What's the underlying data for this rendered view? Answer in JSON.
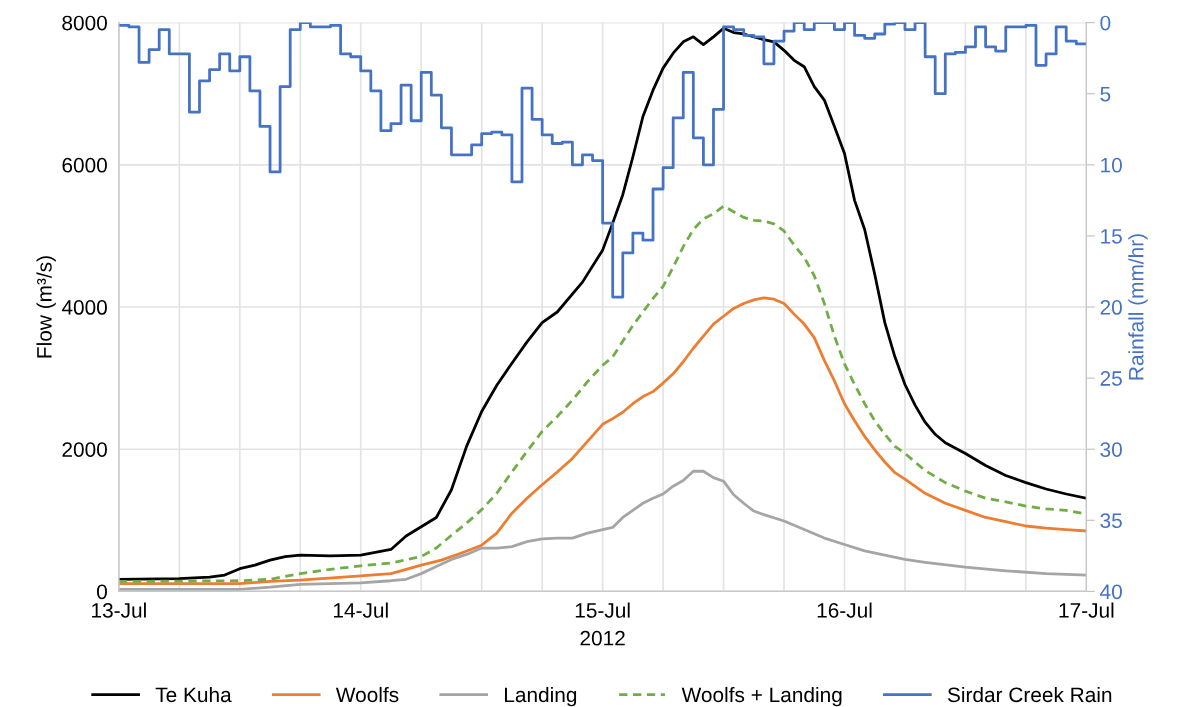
{
  "chart_data": {
    "type": "line",
    "xlabel": "2012",
    "ylabel": "Flow (m³/s)",
    "y2label": "Rainfall (mm/hr)",
    "xlim": [
      "2012-07-13T00:00",
      "2012-07-17T00:00"
    ],
    "xticks": [
      {
        "value": "2012-07-13T00:00",
        "label": "13-Jul"
      },
      {
        "value": "2012-07-13T06:00",
        "label": null
      },
      {
        "value": "2012-07-13T12:00",
        "label": null
      },
      {
        "value": "2012-07-13T18:00",
        "label": null
      },
      {
        "value": "2012-07-14T00:00",
        "label": "14-Jul"
      },
      {
        "value": "2012-07-14T06:00",
        "label": null
      },
      {
        "value": "2012-07-14T12:00",
        "label": null
      },
      {
        "value": "2012-07-14T18:00",
        "label": null
      },
      {
        "value": "2012-07-15T00:00",
        "label": "15-Jul"
      },
      {
        "value": "2012-07-15T06:00",
        "label": null
      },
      {
        "value": "2012-07-15T12:00",
        "label": null
      },
      {
        "value": "2012-07-15T18:00",
        "label": null
      },
      {
        "value": "2012-07-16T00:00",
        "label": "16-Jul"
      },
      {
        "value": "2012-07-16T06:00",
        "label": null
      },
      {
        "value": "2012-07-16T12:00",
        "label": null
      },
      {
        "value": "2012-07-16T18:00",
        "label": null
      },
      {
        "value": "2012-07-17T00:00",
        "label": "17-Jul"
      }
    ],
    "ylim": [
      0,
      8000
    ],
    "yticks": [
      0,
      2000,
      4000,
      6000,
      8000
    ],
    "y2lim": [
      40,
      0
    ],
    "y2ticks": [
      0,
      5,
      10,
      15,
      20,
      25,
      30,
      35,
      40
    ],
    "grid": true,
    "legend": "bottom",
    "series": [
      {
        "name": "Te Kuha",
        "color": "#000000",
        "x": [
          "2012-07-13T00:00",
          "2012-07-13T06:00",
          "2012-07-13T09:00",
          "2012-07-13T10:30",
          "2012-07-13T12:00",
          "2012-07-13T13:30",
          "2012-07-13T15:00",
          "2012-07-13T16:30",
          "2012-07-13T18:00",
          "2012-07-13T21:00",
          "2012-07-14T00:00",
          "2012-07-14T03:00",
          "2012-07-14T04:30",
          "2012-07-14T06:00",
          "2012-07-14T07:30",
          "2012-07-14T09:00",
          "2012-07-14T10:30",
          "2012-07-14T12:00",
          "2012-07-14T13:30",
          "2012-07-14T15:00",
          "2012-07-14T16:30",
          "2012-07-14T18:00",
          "2012-07-14T19:30",
          "2012-07-14T22:00",
          "2012-07-15T00:00",
          "2012-07-15T01:00",
          "2012-07-15T02:00",
          "2012-07-15T03:00",
          "2012-07-15T04:00",
          "2012-07-15T05:00",
          "2012-07-15T06:00",
          "2012-07-15T07:00",
          "2012-07-15T08:00",
          "2012-07-15T09:00",
          "2012-07-15T10:00",
          "2012-07-15T11:00",
          "2012-07-15T12:00",
          "2012-07-15T13:00",
          "2012-07-15T14:00",
          "2012-07-15T16:00",
          "2012-07-15T17:00",
          "2012-07-15T18:00",
          "2012-07-15T19:00",
          "2012-07-15T20:00",
          "2012-07-15T21:00",
          "2012-07-15T22:00",
          "2012-07-15T23:00",
          "2012-07-16T00:00",
          "2012-07-16T01:00",
          "2012-07-16T02:00",
          "2012-07-16T03:00",
          "2012-07-16T04:00",
          "2012-07-16T05:00",
          "2012-07-16T06:00",
          "2012-07-16T07:00",
          "2012-07-16T08:00",
          "2012-07-16T09:00",
          "2012-07-16T10:00",
          "2012-07-16T12:00",
          "2012-07-16T14:00",
          "2012-07-16T16:00",
          "2012-07-16T18:00",
          "2012-07-16T20:00",
          "2012-07-16T22:00",
          "2012-07-17T00:00"
        ],
        "values": [
          170,
          180,
          200,
          230,
          320,
          370,
          440,
          490,
          510,
          500,
          510,
          590,
          780,
          910,
          1040,
          1430,
          2040,
          2530,
          2900,
          3210,
          3510,
          3780,
          3930,
          4350,
          4800,
          5180,
          5580,
          6110,
          6680,
          7050,
          7360,
          7570,
          7730,
          7800,
          7690,
          7800,
          7920,
          7860,
          7840,
          7760,
          7730,
          7610,
          7470,
          7380,
          7100,
          6910,
          6540,
          6160,
          5500,
          5090,
          4460,
          3780,
          3300,
          2910,
          2620,
          2380,
          2210,
          2090,
          1940,
          1770,
          1630,
          1530,
          1440,
          1370,
          1310
        ]
      },
      {
        "name": "Woolfs",
        "color": "#ed7d31",
        "x": [
          "2012-07-13T00:00",
          "2012-07-13T12:00",
          "2012-07-13T15:00",
          "2012-07-13T18:00",
          "2012-07-14T00:00",
          "2012-07-14T03:00",
          "2012-07-14T06:00",
          "2012-07-14T08:00",
          "2012-07-14T10:00",
          "2012-07-14T12:00",
          "2012-07-14T13:30",
          "2012-07-14T15:00",
          "2012-07-14T16:30",
          "2012-07-14T18:00",
          "2012-07-14T19:30",
          "2012-07-14T21:00",
          "2012-07-14T22:30",
          "2012-07-15T00:00",
          "2012-07-15T01:00",
          "2012-07-15T02:00",
          "2012-07-15T03:00",
          "2012-07-15T04:00",
          "2012-07-15T05:00",
          "2012-07-15T06:00",
          "2012-07-15T07:00",
          "2012-07-15T08:00",
          "2012-07-15T09:00",
          "2012-07-15T10:00",
          "2012-07-15T11:00",
          "2012-07-15T12:00",
          "2012-07-15T13:00",
          "2012-07-15T14:00",
          "2012-07-15T15:00",
          "2012-07-15T16:00",
          "2012-07-15T17:00",
          "2012-07-15T18:00",
          "2012-07-15T19:00",
          "2012-07-15T20:00",
          "2012-07-15T21:00",
          "2012-07-15T22:00",
          "2012-07-15T23:00",
          "2012-07-16T00:00",
          "2012-07-16T01:00",
          "2012-07-16T02:00",
          "2012-07-16T03:00",
          "2012-07-16T04:00",
          "2012-07-16T05:00",
          "2012-07-16T06:00",
          "2012-07-16T08:00",
          "2012-07-16T10:00",
          "2012-07-16T12:00",
          "2012-07-16T14:00",
          "2012-07-16T16:00",
          "2012-07-16T18:00",
          "2012-07-16T20:00",
          "2012-07-16T22:00",
          "2012-07-17T00:00"
        ],
        "values": [
          110,
          110,
          140,
          160,
          220,
          250,
          370,
          440,
          540,
          650,
          820,
          1100,
          1310,
          1500,
          1680,
          1870,
          2110,
          2350,
          2430,
          2520,
          2640,
          2740,
          2810,
          2930,
          3060,
          3230,
          3420,
          3590,
          3760,
          3870,
          3980,
          4050,
          4100,
          4130,
          4110,
          4050,
          3900,
          3760,
          3570,
          3250,
          2960,
          2640,
          2400,
          2180,
          1990,
          1820,
          1670,
          1580,
          1380,
          1240,
          1140,
          1040,
          980,
          920,
          890,
          870,
          850
        ]
      },
      {
        "name": "Landing",
        "color": "#a5a5a5",
        "x": [
          "2012-07-13T00:00",
          "2012-07-13T12:00",
          "2012-07-13T15:00",
          "2012-07-13T18:00",
          "2012-07-13T21:00",
          "2012-07-14T00:00",
          "2012-07-14T03:00",
          "2012-07-14T04:30",
          "2012-07-14T06:00",
          "2012-07-14T07:30",
          "2012-07-14T09:00",
          "2012-07-14T10:30",
          "2012-07-14T12:00",
          "2012-07-14T13:30",
          "2012-07-14T15:00",
          "2012-07-14T16:30",
          "2012-07-14T18:00",
          "2012-07-14T19:30",
          "2012-07-14T21:00",
          "2012-07-14T22:30",
          "2012-07-15T00:00",
          "2012-07-15T01:00",
          "2012-07-15T02:00",
          "2012-07-15T03:00",
          "2012-07-15T04:00",
          "2012-07-15T05:00",
          "2012-07-15T06:00",
          "2012-07-15T07:00",
          "2012-07-15T08:00",
          "2012-07-15T09:00",
          "2012-07-15T10:00",
          "2012-07-15T11:00",
          "2012-07-15T12:00",
          "2012-07-15T13:00",
          "2012-07-15T14:00",
          "2012-07-15T15:00",
          "2012-07-15T16:00",
          "2012-07-15T18:00",
          "2012-07-15T20:00",
          "2012-07-15T22:00",
          "2012-07-16T00:00",
          "2012-07-16T02:00",
          "2012-07-16T04:00",
          "2012-07-16T06:00",
          "2012-07-16T08:00",
          "2012-07-16T12:00",
          "2012-07-16T16:00",
          "2012-07-16T20:00",
          "2012-07-17T00:00"
        ],
        "values": [
          30,
          30,
          60,
          100,
          110,
          120,
          150,
          170,
          250,
          350,
          450,
          520,
          610,
          610,
          630,
          700,
          740,
          750,
          750,
          820,
          870,
          900,
          1040,
          1140,
          1240,
          1310,
          1370,
          1480,
          1560,
          1690,
          1690,
          1600,
          1550,
          1360,
          1240,
          1130,
          1080,
          990,
          870,
          750,
          660,
          570,
          510,
          450,
          410,
          340,
          290,
          250,
          230
        ]
      },
      {
        "name": "Woolfs + Landing",
        "color": "#70ad47",
        "line_style": "dashed",
        "x": [
          "2012-07-13T00:00",
          "2012-07-13T12:00",
          "2012-07-13T15:00",
          "2012-07-13T18:00",
          "2012-07-13T21:00",
          "2012-07-14T00:00",
          "2012-07-14T03:00",
          "2012-07-14T06:00",
          "2012-07-14T07:30",
          "2012-07-14T09:00",
          "2012-07-14T10:30",
          "2012-07-14T12:00",
          "2012-07-14T13:30",
          "2012-07-14T15:00",
          "2012-07-14T16:30",
          "2012-07-14T18:00",
          "2012-07-14T19:30",
          "2012-07-14T21:00",
          "2012-07-14T22:30",
          "2012-07-15T00:00",
          "2012-07-15T01:00",
          "2012-07-15T02:00",
          "2012-07-15T03:00",
          "2012-07-15T04:00",
          "2012-07-15T05:00",
          "2012-07-15T06:00",
          "2012-07-15T07:00",
          "2012-07-15T08:00",
          "2012-07-15T09:00",
          "2012-07-15T10:00",
          "2012-07-15T11:00",
          "2012-07-15T12:00",
          "2012-07-15T13:00",
          "2012-07-15T14:00",
          "2012-07-15T15:00",
          "2012-07-15T16:00",
          "2012-07-15T17:00",
          "2012-07-15T18:00",
          "2012-07-15T19:00",
          "2012-07-15T20:00",
          "2012-07-15T21:00",
          "2012-07-15T22:00",
          "2012-07-15T23:00",
          "2012-07-16T00:00",
          "2012-07-16T01:00",
          "2012-07-16T02:00",
          "2012-07-16T03:00",
          "2012-07-16T04:00",
          "2012-07-16T05:00",
          "2012-07-16T06:00",
          "2012-07-16T08:00",
          "2012-07-16T10:00",
          "2012-07-16T12:00",
          "2012-07-16T14:00",
          "2012-07-16T16:00",
          "2012-07-16T18:00",
          "2012-07-16T20:00",
          "2012-07-16T22:00",
          "2012-07-17T00:00"
        ],
        "values": [
          140,
          150,
          170,
          250,
          310,
          360,
          400,
          490,
          610,
          790,
          960,
          1150,
          1380,
          1680,
          1970,
          2250,
          2460,
          2690,
          2950,
          3180,
          3300,
          3520,
          3740,
          3930,
          4120,
          4290,
          4560,
          4850,
          5090,
          5240,
          5310,
          5420,
          5340,
          5260,
          5220,
          5210,
          5170,
          5070,
          4870,
          4700,
          4440,
          4050,
          3590,
          3200,
          2910,
          2640,
          2400,
          2210,
          2040,
          1940,
          1700,
          1530,
          1410,
          1310,
          1260,
          1200,
          1160,
          1140,
          1090
        ]
      },
      {
        "name": "Sirdar Creek Rain",
        "color": "#4472c4",
        "type": "step",
        "axis": "y2",
        "x": [
          "2012-07-13T00:00",
          "2012-07-13T01:00",
          "2012-07-13T02:00",
          "2012-07-13T03:00",
          "2012-07-13T04:00",
          "2012-07-13T05:00",
          "2012-07-13T06:00",
          "2012-07-13T07:00",
          "2012-07-13T08:00",
          "2012-07-13T09:00",
          "2012-07-13T10:00",
          "2012-07-13T11:00",
          "2012-07-13T12:00",
          "2012-07-13T13:00",
          "2012-07-13T14:00",
          "2012-07-13T15:00",
          "2012-07-13T16:00",
          "2012-07-13T17:00",
          "2012-07-13T18:00",
          "2012-07-13T19:00",
          "2012-07-13T20:00",
          "2012-07-13T21:00",
          "2012-07-13T22:00",
          "2012-07-13T23:00",
          "2012-07-14T00:00",
          "2012-07-14T01:00",
          "2012-07-14T02:00",
          "2012-07-14T03:00",
          "2012-07-14T04:00",
          "2012-07-14T05:00",
          "2012-07-14T06:00",
          "2012-07-14T07:00",
          "2012-07-14T08:00",
          "2012-07-14T09:00",
          "2012-07-14T10:00",
          "2012-07-14T11:00",
          "2012-07-14T12:00",
          "2012-07-14T13:00",
          "2012-07-14T14:00",
          "2012-07-14T15:00",
          "2012-07-14T16:00",
          "2012-07-14T17:00",
          "2012-07-14T18:00",
          "2012-07-14T19:00",
          "2012-07-14T20:00",
          "2012-07-14T21:00",
          "2012-07-14T22:00",
          "2012-07-14T23:00",
          "2012-07-15T00:00",
          "2012-07-15T01:00",
          "2012-07-15T02:00",
          "2012-07-15T03:00",
          "2012-07-15T04:00",
          "2012-07-15T05:00",
          "2012-07-15T06:00",
          "2012-07-15T07:00",
          "2012-07-15T08:00",
          "2012-07-15T09:00",
          "2012-07-15T10:00",
          "2012-07-15T11:00",
          "2012-07-15T12:00",
          "2012-07-15T13:00",
          "2012-07-15T14:00",
          "2012-07-15T15:00",
          "2012-07-15T16:00",
          "2012-07-15T17:00",
          "2012-07-15T18:00",
          "2012-07-15T19:00",
          "2012-07-15T20:00",
          "2012-07-15T21:00",
          "2012-07-15T22:00",
          "2012-07-15T23:00",
          "2012-07-16T00:00",
          "2012-07-16T01:00",
          "2012-07-16T02:00",
          "2012-07-16T03:00",
          "2012-07-16T04:00",
          "2012-07-16T05:00",
          "2012-07-16T06:00",
          "2012-07-16T07:00",
          "2012-07-16T08:00",
          "2012-07-16T09:00",
          "2012-07-16T10:00",
          "2012-07-16T11:00",
          "2012-07-16T12:00",
          "2012-07-16T13:00",
          "2012-07-16T14:00",
          "2012-07-16T15:00",
          "2012-07-16T16:00",
          "2012-07-16T17:00",
          "2012-07-16T18:00",
          "2012-07-16T19:00",
          "2012-07-16T20:00",
          "2012-07-16T21:00",
          "2012-07-16T22:00",
          "2012-07-16T23:00",
          "2012-07-17T00:00"
        ],
        "values": [
          0.2,
          0.3,
          2.8,
          1.9,
          0.5,
          2.2,
          2.2,
          6.3,
          4.1,
          3.3,
          2.2,
          3.4,
          2.4,
          4.8,
          7.3,
          10.5,
          4.5,
          0.5,
          0,
          0.3,
          0.3,
          0.2,
          2.2,
          2.4,
          3.4,
          4.8,
          7.6,
          7.1,
          4.4,
          6.9,
          3.5,
          5.1,
          7.4,
          9.3,
          9.3,
          8.6,
          7.8,
          7.7,
          7.9,
          11.2,
          4.6,
          6.8,
          7.9,
          8.5,
          8.4,
          10,
          9.3,
          9.7,
          14.1,
          19.3,
          16.2,
          14.8,
          15.3,
          11.7,
          10.2,
          6.7,
          3.5,
          8.1,
          10,
          6.1,
          0.3,
          0.5,
          0.9,
          1,
          2.9,
          1.3,
          0.6,
          0,
          0.5,
          0,
          0,
          0.5,
          0,
          0.9,
          1.1,
          0.8,
          0.1,
          0,
          0.5,
          0,
          2.4,
          5,
          2.2,
          2.1,
          1.7,
          0.3,
          1.7,
          2,
          0.3,
          0.3,
          0.2,
          3,
          2.2,
          0.3,
          1.3,
          1.5,
          1.5
        ]
      }
    ]
  }
}
